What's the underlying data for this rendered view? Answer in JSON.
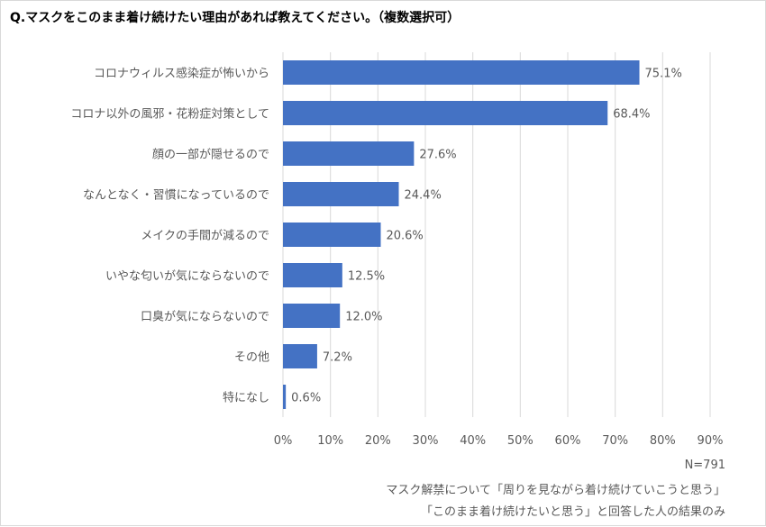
{
  "title": "Q.マスクをこのまま着け続けたい理由があれば教えてください。（複数選択可）",
  "footnotes": {
    "n": "N=791",
    "line1": "マスク解禁について「周りを見ながら着け続けていこうと思う」",
    "line2": "「このまま着け続けたいと思う」と回答した人の結果のみ"
  },
  "colors": {
    "bar": "#4472c4",
    "grid": "#d9d9d9",
    "text": "#595959"
  },
  "chart_data": {
    "type": "bar",
    "orientation": "horizontal",
    "categories": [
      "コロナウィルス感染症が怖いから",
      "コロナ以外の風邪・花粉症対策として",
      "顔の一部が隠せるので",
      "なんとなく・習慣になっているので",
      "メイクの手間が減るので",
      "いやな匂いが気にならないので",
      "口臭が気にならないので",
      "その他",
      "特になし"
    ],
    "values": [
      75.1,
      68.4,
      27.6,
      24.4,
      20.6,
      12.5,
      12.0,
      7.2,
      0.6
    ],
    "data_labels": [
      "75.1%",
      "68.4%",
      "27.6%",
      "24.4%",
      "20.6%",
      "12.5%",
      "12.0%",
      "7.2%",
      "0.6%"
    ],
    "xlim": [
      0,
      90
    ],
    "xticks": [
      0,
      10,
      20,
      30,
      40,
      50,
      60,
      70,
      80,
      90
    ],
    "xtick_labels": [
      "0%",
      "10%",
      "20%",
      "30%",
      "40%",
      "50%",
      "60%",
      "70%",
      "80%",
      "90%"
    ],
    "grid": true,
    "legend": "none"
  }
}
